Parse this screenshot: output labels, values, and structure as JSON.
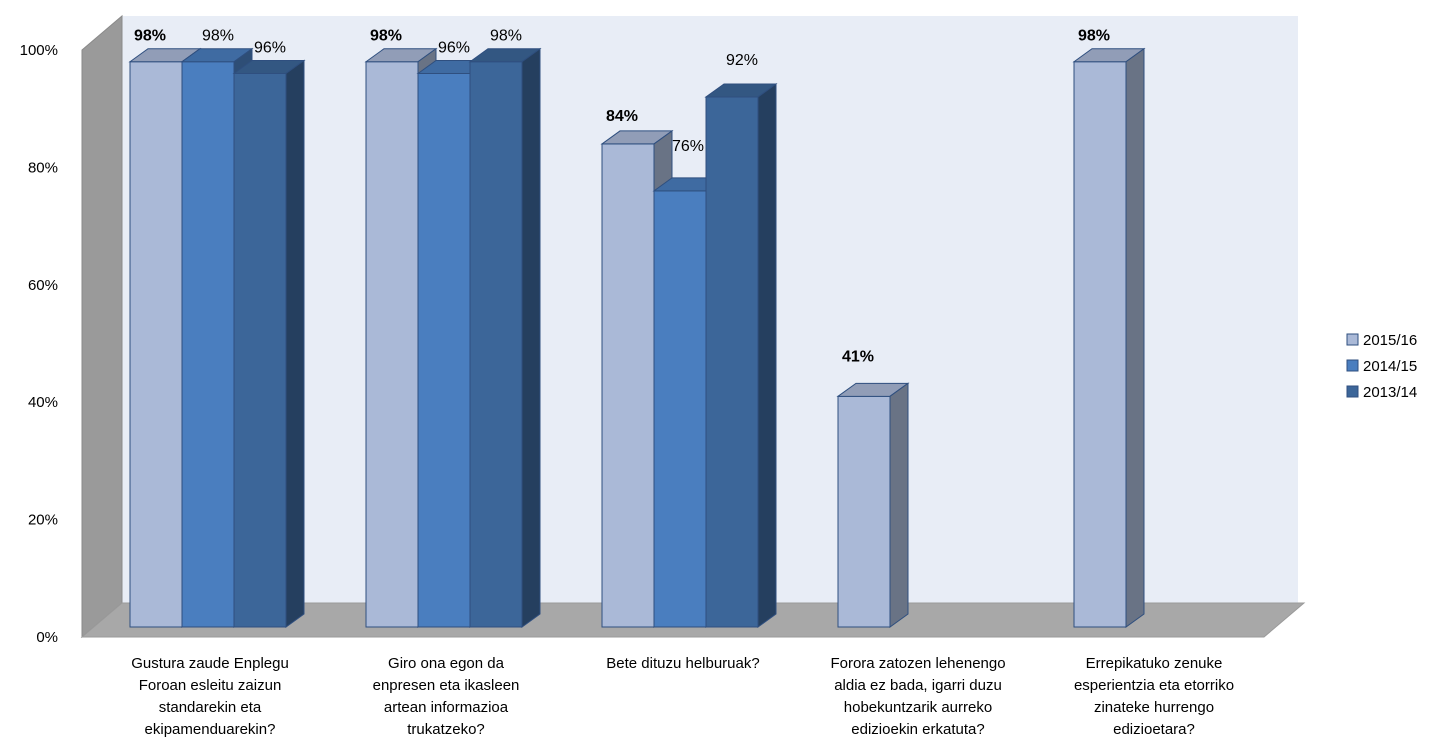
{
  "chart_data": {
    "type": "bar",
    "subtype": "3d-clustered-column",
    "categories": [
      [
        "Gustura zaude Enplegu",
        "Foroan esleitu zaizun",
        "standarekin eta",
        "ekipamenduarekin?"
      ],
      [
        "Giro ona egon da",
        "enpresen eta ikasleen",
        "artean informazioa",
        "trukatzeko?"
      ],
      [
        "Bete dituzu helburuak?"
      ],
      [
        "Forora zatozen lehenengo",
        "aldia ez bada, igarri duzu",
        "hobekuntzarik aurreko",
        "edizioekin erkatuta?"
      ],
      [
        "Errepikatuko zenuke",
        "esperientzia eta etorriko",
        "zinateke hurrengo",
        "edizioetara?"
      ]
    ],
    "series": [
      {
        "name": "2015/16",
        "color": "#AAB9D7",
        "values": [
          98,
          98,
          84,
          41,
          98
        ],
        "labels": [
          "98%",
          "98%",
          "84%",
          "41%",
          "98%"
        ],
        "label_bold": true
      },
      {
        "name": "2014/15",
        "color": "#4A7EBF",
        "values": [
          98,
          96,
          76,
          null,
          null
        ],
        "labels": [
          "98%",
          "96%",
          "76%",
          "",
          ""
        ],
        "label_bold": false
      },
      {
        "name": "2013/14",
        "color": "#3C6699",
        "values": [
          96,
          98,
          92,
          null,
          null
        ],
        "labels": [
          "96%",
          "98%",
          "92%",
          "",
          ""
        ],
        "label_bold": false
      }
    ],
    "ylim": [
      0,
      100
    ],
    "yticks": [
      "0%",
      "20%",
      "40%",
      "60%",
      "80%",
      "100%"
    ],
    "grid": false,
    "legend_position": "right",
    "title": "",
    "xlabel": "",
    "ylabel": ""
  }
}
